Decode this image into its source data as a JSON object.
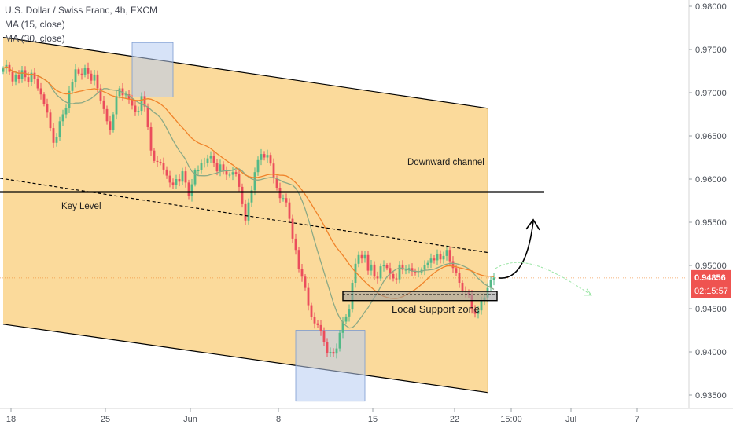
{
  "legend": {
    "title": "U.S. Dollar / Swiss Franc, 4h, FXCM",
    "ma1": "MA (15, close)",
    "ma2": "MA (30, close)"
  },
  "colors": {
    "channel_fill": "#FAD38A",
    "bull": "#53B987",
    "bear": "#EB4D5C",
    "ma_fast": "#8CA985",
    "ma_slow": "#F0832A",
    "box": "#B7CCF2",
    "price_label": "#EF5350",
    "line": "#000000",
    "forecast": "#9BE5A5"
  },
  "price_label": {
    "price": "0.94856",
    "countdown": "02:15:57"
  },
  "annotations": {
    "channel": "Downward channel",
    "key_level": "Key Level",
    "support": "Local Support zone"
  },
  "chart_data": {
    "type": "candlestick",
    "title": "U.S. Dollar / Swiss Franc, 4h, FXCM",
    "xlabel": "",
    "ylabel": "",
    "ylim": [
      0.9345,
      0.9805
    ],
    "yticks": [
      "0.98000",
      "0.97500",
      "0.97000",
      "0.96500",
      "0.96000",
      "0.95500",
      "0.95000",
      "0.94500",
      "0.94000",
      "0.93500"
    ],
    "xticks": [
      {
        "label": "18",
        "bar": -1
      },
      {
        "label": "25",
        "bar": 29
      },
      {
        "label": "Jun",
        "bar": 56
      },
      {
        "label": "8",
        "bar": 84
      },
      {
        "label": "15",
        "bar": 114
      },
      {
        "label": "22",
        "bar": 140
      },
      {
        "label": "15:00",
        "bar": 158
      },
      {
        "label": "Jul",
        "bar": 177
      },
      {
        "label": "7",
        "bar": 198
      }
    ],
    "bar_count": 155,
    "series": [
      {
        "name": "USDCHF",
        "close": [
          0.9728,
          0.9732,
          0.9724,
          0.9713,
          0.9721,
          0.9716,
          0.9726,
          0.9718,
          0.9712,
          0.9723,
          0.9716,
          0.9705,
          0.9698,
          0.9687,
          0.9677,
          0.9659,
          0.9642,
          0.9649,
          0.9667,
          0.9675,
          0.9682,
          0.9702,
          0.9712,
          0.9727,
          0.9722,
          0.9721,
          0.9729,
          0.9722,
          0.9714,
          0.9721,
          0.9705,
          0.9691,
          0.9681,
          0.9667,
          0.9657,
          0.9675,
          0.9696,
          0.9705,
          0.9697,
          0.9698,
          0.9693,
          0.9685,
          0.9678,
          0.9679,
          0.9696,
          0.9684,
          0.966,
          0.9633,
          0.9621,
          0.962,
          0.9619,
          0.9611,
          0.9604,
          0.9596,
          0.9593,
          0.96,
          0.9597,
          0.9609,
          0.9596,
          0.958,
          0.9594,
          0.961,
          0.961,
          0.9619,
          0.9619,
          0.9624,
          0.9627,
          0.9619,
          0.9609,
          0.9617,
          0.9609,
          0.9605,
          0.9605,
          0.9608,
          0.9606,
          0.9591,
          0.9571,
          0.9552,
          0.9573,
          0.9587,
          0.9608,
          0.9622,
          0.9629,
          0.9625,
          0.9628,
          0.9618,
          0.9601,
          0.959,
          0.9578,
          0.9578,
          0.9573,
          0.9554,
          0.9531,
          0.9518,
          0.9496,
          0.9487,
          0.9474,
          0.9454,
          0.944,
          0.9433,
          0.9431,
          0.9424,
          0.9411,
          0.9399,
          0.94,
          0.9398,
          0.9404,
          0.9422,
          0.9435,
          0.9441,
          0.9449,
          0.948,
          0.9502,
          0.9512,
          0.9508,
          0.9512,
          0.9494,
          0.9501,
          0.9487,
          0.9485,
          0.9499,
          0.95,
          0.9497,
          0.949,
          0.9485,
          0.9484,
          0.9501,
          0.9495,
          0.9495,
          0.9497,
          0.9493,
          0.9492,
          0.9492,
          0.9495,
          0.95,
          0.9503,
          0.9508,
          0.9506,
          0.9513,
          0.9507,
          0.9511,
          0.9518,
          0.9505,
          0.9497,
          0.9491,
          0.948,
          0.947,
          0.9469,
          0.9466,
          0.945,
          0.9444,
          0.9448,
          0.9459,
          0.9463,
          0.9474,
          0.9483,
          0.9486
        ]
      },
      {
        "name": "MA (15, close)"
      },
      {
        "name": "MA (30, close)"
      }
    ],
    "channel": {
      "upper": [
        {
          "bar": 0,
          "price": 0.9764
        },
        {
          "bar": 154,
          "price": 0.9682
        }
      ],
      "lower": [
        {
          "bar": 0,
          "price": 0.9432
        },
        {
          "bar": 154,
          "price": 0.9353
        }
      ]
    },
    "key_level": {
      "price": 0.9585,
      "bar_start": 0,
      "bar_end": 172
    },
    "trendline": [
      {
        "bar": 0,
        "price": 0.9601
      },
      {
        "bar": 154,
        "price": 0.9515
      }
    ],
    "support_zone": {
      "price_top": 0.947,
      "price_bottom": 0.9463,
      "bar_start": 108,
      "bar_end": 157
    },
    "boxes": [
      {
        "bar_start": 41,
        "bar_end": 54,
        "price_top": 0.9758,
        "price_bottom": 0.9695
      },
      {
        "bar_start": 93,
        "bar_end": 115,
        "price_top": 0.9425,
        "price_bottom": 0.9343
      }
    ],
    "current_price": 0.94856
  }
}
